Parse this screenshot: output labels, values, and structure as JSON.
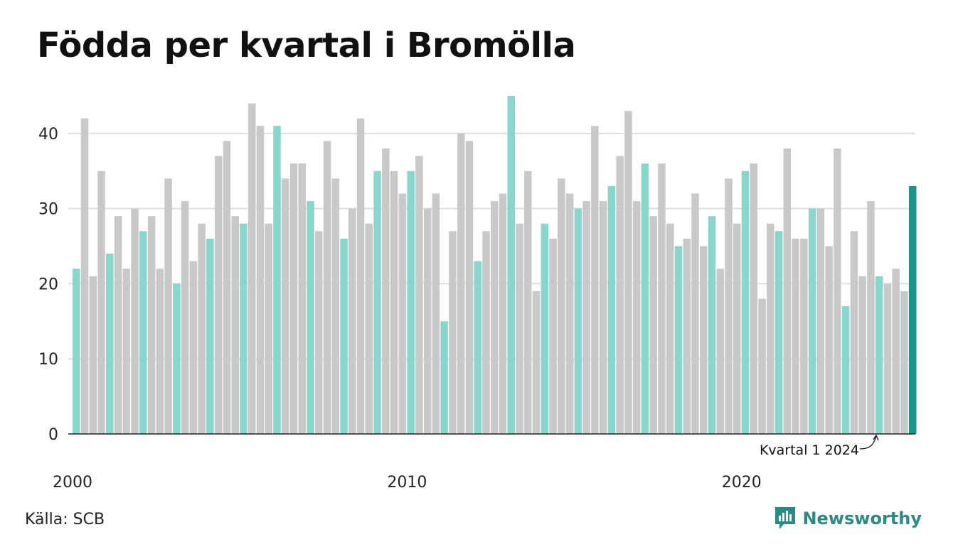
{
  "title": "Födda per kvartal i Bromölla",
  "source": "Källa: SCB",
  "brand": "Newsworthy",
  "colors": {
    "q1": "#88d6cc",
    "other": "#c9c9c9",
    "latest": "#1a9488",
    "grid": "#dedede",
    "axis": "#222222",
    "brand": "#2a8a84"
  },
  "chart_data": {
    "type": "bar",
    "title": "Födda per kvartal i Bromölla",
    "xlabel": "",
    "ylabel": "",
    "ylim": [
      0,
      45
    ],
    "yticks": [
      0,
      10,
      20,
      30,
      40
    ],
    "x_tick_labels": [
      "2000",
      "2010",
      "2020"
    ],
    "start_year": 2000,
    "annotation": "Kvartal 1 2024",
    "grid": true,
    "values": [
      22,
      42,
      21,
      35,
      24,
      29,
      22,
      30,
      27,
      29,
      22,
      34,
      20,
      31,
      23,
      28,
      26,
      37,
      39,
      29,
      28,
      44,
      41,
      28,
      41,
      34,
      36,
      36,
      31,
      27,
      39,
      34,
      26,
      30,
      42,
      28,
      35,
      38,
      35,
      32,
      35,
      37,
      30,
      32,
      15,
      27,
      40,
      39,
      23,
      27,
      31,
      32,
      45,
      28,
      35,
      19,
      28,
      26,
      34,
      32,
      30,
      31,
      41,
      31,
      33,
      37,
      43,
      31,
      36,
      29,
      36,
      28,
      25,
      26,
      32,
      25,
      29,
      22,
      34,
      28,
      35,
      36,
      18,
      28,
      27,
      38,
      26,
      26,
      30,
      30,
      25,
      38,
      17,
      27,
      21,
      31,
      21,
      20,
      22,
      19,
      33
    ]
  }
}
